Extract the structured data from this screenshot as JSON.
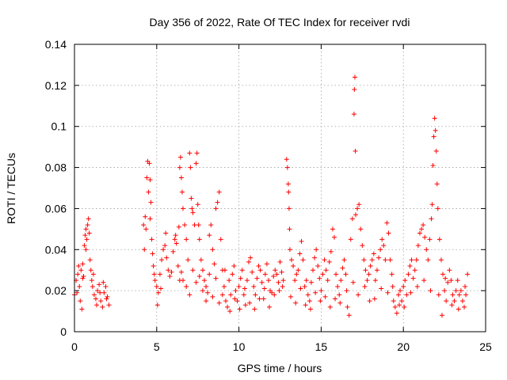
{
  "chart_data": {
    "type": "scatter",
    "title": "Day 356 of 2022, Rate Of TEC Index for receiver rvdi",
    "xlabel": "GPS time / hours",
    "ylabel": "ROTI / TECUs",
    "xlim": [
      0,
      25
    ],
    "ylim": [
      0,
      0.14
    ],
    "xticks": [
      "0",
      "5",
      "10",
      "15",
      "20",
      "25"
    ],
    "yticks": [
      "0",
      "0.02",
      "0.04",
      "0.06",
      "0.08",
      "0.1",
      "0.12",
      "0.14"
    ],
    "grid": true,
    "marker": "+",
    "color": "#ff0000",
    "points": [
      [
        0.0,
        0.018
      ],
      [
        0.1,
        0.025
      ],
      [
        0.2,
        0.028
      ],
      [
        0.25,
        0.032
      ],
      [
        0.3,
        0.022
      ],
      [
        0.35,
        0.015
      ],
      [
        0.4,
        0.03
      ],
      [
        0.45,
        0.011
      ],
      [
        0.5,
        0.026
      ],
      [
        0.55,
        0.027
      ],
      [
        0.6,
        0.042
      ],
      [
        0.65,
        0.047
      ],
      [
        0.7,
        0.05
      ],
      [
        0.75,
        0.045
      ],
      [
        0.8,
        0.052
      ],
      [
        0.85,
        0.055
      ],
      [
        0.9,
        0.048
      ],
      [
        0.95,
        0.035
      ],
      [
        1.0,
        0.03
      ],
      [
        1.05,
        0.025
      ],
      [
        1.1,
        0.022
      ],
      [
        1.2,
        0.018
      ],
      [
        1.3,
        0.016
      ],
      [
        1.4,
        0.02
      ],
      [
        1.5,
        0.023
      ],
      [
        1.6,
        0.015
      ],
      [
        1.7,
        0.012
      ],
      [
        1.8,
        0.019
      ],
      [
        1.9,
        0.022
      ],
      [
        2.0,
        0.017
      ],
      [
        2.1,
        0.013
      ],
      [
        0.15,
        0.019
      ],
      [
        0.5,
        0.033
      ],
      [
        0.7,
        0.04
      ],
      [
        1.15,
        0.028
      ],
      [
        1.35,
        0.013
      ],
      [
        1.55,
        0.019
      ],
      [
        1.75,
        0.024
      ],
      [
        1.95,
        0.016
      ],
      [
        4.2,
        0.052
      ],
      [
        4.3,
        0.056
      ],
      [
        4.35,
        0.05
      ],
      [
        4.4,
        0.075
      ],
      [
        4.45,
        0.083
      ],
      [
        4.5,
        0.068
      ],
      [
        4.55,
        0.082
      ],
      [
        4.6,
        0.074
      ],
      [
        4.65,
        0.063
      ],
      [
        4.7,
        0.045
      ],
      [
        4.75,
        0.038
      ],
      [
        4.8,
        0.032
      ],
      [
        4.85,
        0.028
      ],
      [
        4.9,
        0.025
      ],
      [
        5.0,
        0.022
      ],
      [
        5.1,
        0.019
      ],
      [
        5.2,
        0.028
      ],
      [
        5.3,
        0.035
      ],
      [
        5.4,
        0.04
      ],
      [
        5.5,
        0.042
      ],
      [
        5.6,
        0.036
      ],
      [
        5.7,
        0.03
      ],
      [
        5.8,
        0.027
      ],
      [
        5.9,
        0.029
      ],
      [
        6.0,
        0.039
      ],
      [
        6.1,
        0.045
      ],
      [
        6.2,
        0.043
      ],
      [
        6.3,
        0.032
      ],
      [
        6.4,
        0.025
      ],
      [
        6.5,
        0.029
      ],
      [
        4.25,
        0.04
      ],
      [
        4.6,
        0.055
      ],
      [
        5.05,
        0.013
      ],
      [
        5.25,
        0.021
      ],
      [
        5.55,
        0.048
      ],
      [
        6.15,
        0.047
      ],
      [
        6.35,
        0.051
      ],
      [
        6.4,
        0.08
      ],
      [
        6.45,
        0.085
      ],
      [
        6.5,
        0.075
      ],
      [
        6.55,
        0.068
      ],
      [
        6.6,
        0.06
      ],
      [
        6.7,
        0.052
      ],
      [
        6.8,
        0.045
      ],
      [
        6.9,
        0.035
      ],
      [
        7.0,
        0.087
      ],
      [
        7.05,
        0.08
      ],
      [
        7.1,
        0.065
      ],
      [
        7.15,
        0.06
      ],
      [
        7.2,
        0.058
      ],
      [
        7.3,
        0.052
      ],
      [
        7.4,
        0.082
      ],
      [
        7.45,
        0.087
      ],
      [
        7.5,
        0.062
      ],
      [
        7.55,
        0.052
      ],
      [
        7.6,
        0.045
      ],
      [
        7.7,
        0.035
      ],
      [
        7.8,
        0.03
      ],
      [
        7.9,
        0.025
      ],
      [
        8.0,
        0.022
      ],
      [
        8.1,
        0.019
      ],
      [
        8.2,
        0.047
      ],
      [
        8.3,
        0.052
      ],
      [
        8.4,
        0.04
      ],
      [
        8.5,
        0.033
      ],
      [
        8.6,
        0.06
      ],
      [
        8.7,
        0.063
      ],
      [
        8.8,
        0.068
      ],
      [
        8.9,
        0.045
      ],
      [
        9.0,
        0.03
      ],
      [
        6.6,
        0.025
      ],
      [
        6.8,
        0.022
      ],
      [
        7.0,
        0.018
      ],
      [
        7.2,
        0.03
      ],
      [
        7.4,
        0.024
      ],
      [
        7.6,
        0.027
      ],
      [
        7.8,
        0.02
      ],
      [
        8.0,
        0.015
      ],
      [
        8.2,
        0.028
      ],
      [
        8.4,
        0.017
      ],
      [
        8.6,
        0.026
      ],
      [
        8.8,
        0.014
      ],
      [
        9.0,
        0.018
      ],
      [
        9.1,
        0.022
      ],
      [
        9.2,
        0.015
      ],
      [
        9.3,
        0.012
      ],
      [
        9.4,
        0.025
      ],
      [
        9.5,
        0.018
      ],
      [
        9.6,
        0.028
      ],
      [
        9.7,
        0.032
      ],
      [
        9.8,
        0.02
      ],
      [
        9.9,
        0.015
      ],
      [
        10.0,
        0.022
      ],
      [
        10.1,
        0.026
      ],
      [
        10.2,
        0.03
      ],
      [
        10.3,
        0.018
      ],
      [
        10.4,
        0.013
      ],
      [
        10.5,
        0.025
      ],
      [
        10.6,
        0.034
      ],
      [
        10.7,
        0.036
      ],
      [
        10.8,
        0.029
      ],
      [
        10.9,
        0.022
      ],
      [
        11.0,
        0.018
      ],
      [
        11.1,
        0.026
      ],
      [
        11.2,
        0.032
      ],
      [
        11.3,
        0.03
      ],
      [
        11.4,
        0.024
      ],
      [
        11.5,
        0.016
      ],
      [
        11.6,
        0.028
      ],
      [
        11.7,
        0.033
      ],
      [
        11.8,
        0.025
      ],
      [
        11.9,
        0.02
      ],
      [
        12.0,
        0.019
      ],
      [
        12.1,
        0.027
      ],
      [
        12.2,
        0.03
      ],
      [
        12.3,
        0.028
      ],
      [
        12.4,
        0.024
      ],
      [
        12.5,
        0.034
      ],
      [
        12.6,
        0.029
      ],
      [
        12.7,
        0.025
      ],
      [
        9.15,
        0.03
      ],
      [
        9.45,
        0.01
      ],
      [
        9.75,
        0.016
      ],
      [
        10.05,
        0.011
      ],
      [
        10.35,
        0.021
      ],
      [
        10.65,
        0.014
      ],
      [
        10.95,
        0.011
      ],
      [
        11.25,
        0.016
      ],
      [
        11.55,
        0.021
      ],
      [
        11.85,
        0.012
      ],
      [
        12.15,
        0.018
      ],
      [
        12.45,
        0.02
      ],
      [
        12.65,
        0.022
      ],
      [
        12.9,
        0.084
      ],
      [
        12.95,
        0.08
      ],
      [
        13.0,
        0.072
      ],
      [
        13.02,
        0.068
      ],
      [
        13.05,
        0.06
      ],
      [
        13.08,
        0.05
      ],
      [
        13.1,
        0.04
      ],
      [
        13.2,
        0.035
      ],
      [
        13.3,
        0.032
      ],
      [
        13.4,
        0.025
      ],
      [
        13.5,
        0.028
      ],
      [
        13.6,
        0.03
      ],
      [
        13.7,
        0.038
      ],
      [
        13.8,
        0.044
      ],
      [
        13.9,
        0.035
      ],
      [
        14.0,
        0.022
      ],
      [
        14.1,
        0.025
      ],
      [
        14.2,
        0.018
      ],
      [
        14.3,
        0.015
      ],
      [
        14.4,
        0.024
      ],
      [
        14.5,
        0.03
      ],
      [
        14.6,
        0.036
      ],
      [
        14.7,
        0.04
      ],
      [
        14.8,
        0.032
      ],
      [
        14.9,
        0.026
      ],
      [
        15.0,
        0.02
      ],
      [
        15.1,
        0.028
      ],
      [
        15.2,
        0.035
      ],
      [
        15.3,
        0.03
      ],
      [
        15.4,
        0.025
      ],
      [
        15.5,
        0.034
      ],
      [
        15.6,
        0.039
      ],
      [
        15.7,
        0.05
      ],
      [
        15.8,
        0.046
      ],
      [
        15.9,
        0.028
      ],
      [
        16.0,
        0.022
      ],
      [
        16.1,
        0.018
      ],
      [
        16.2,
        0.025
      ],
      [
        16.3,
        0.031
      ],
      [
        13.15,
        0.017
      ],
      [
        13.45,
        0.014
      ],
      [
        13.75,
        0.021
      ],
      [
        14.05,
        0.013
      ],
      [
        14.35,
        0.011
      ],
      [
        14.65,
        0.019
      ],
      [
        14.95,
        0.015
      ],
      [
        15.25,
        0.017
      ],
      [
        15.55,
        0.012
      ],
      [
        15.85,
        0.016
      ],
      [
        16.15,
        0.014
      ],
      [
        16.4,
        0.035
      ],
      [
        16.5,
        0.028
      ],
      [
        16.6,
        0.012
      ],
      [
        16.7,
        0.008
      ],
      [
        16.8,
        0.045
      ],
      [
        16.9,
        0.055
      ],
      [
        17.0,
        0.106
      ],
      [
        17.02,
        0.118
      ],
      [
        17.05,
        0.124
      ],
      [
        17.08,
        0.088
      ],
      [
        17.1,
        0.057
      ],
      [
        17.2,
        0.06
      ],
      [
        17.3,
        0.062
      ],
      [
        17.4,
        0.05
      ],
      [
        17.5,
        0.042
      ],
      [
        17.6,
        0.035
      ],
      [
        17.7,
        0.03
      ],
      [
        17.8,
        0.025
      ],
      [
        17.9,
        0.028
      ],
      [
        18.0,
        0.032
      ],
      [
        18.1,
        0.035
      ],
      [
        18.2,
        0.038
      ],
      [
        18.3,
        0.025
      ],
      [
        18.4,
        0.03
      ],
      [
        18.5,
        0.036
      ],
      [
        18.6,
        0.04
      ],
      [
        18.7,
        0.045
      ],
      [
        18.8,
        0.042
      ],
      [
        18.9,
        0.035
      ],
      [
        19.0,
        0.053
      ],
      [
        19.1,
        0.048
      ],
      [
        19.2,
        0.035
      ],
      [
        19.3,
        0.028
      ],
      [
        19.4,
        0.015
      ],
      [
        19.5,
        0.012
      ],
      [
        19.6,
        0.009
      ],
      [
        19.7,
        0.018
      ],
      [
        19.8,
        0.02
      ],
      [
        16.55,
        0.02
      ],
      [
        16.95,
        0.024
      ],
      [
        17.25,
        0.018
      ],
      [
        17.65,
        0.022
      ],
      [
        17.95,
        0.015
      ],
      [
        18.25,
        0.016
      ],
      [
        18.65,
        0.021
      ],
      [
        19.05,
        0.019
      ],
      [
        19.35,
        0.022
      ],
      [
        19.75,
        0.013
      ],
      [
        19.9,
        0.015
      ],
      [
        20.0,
        0.022
      ],
      [
        20.1,
        0.025
      ],
      [
        20.2,
        0.018
      ],
      [
        20.3,
        0.028
      ],
      [
        20.4,
        0.032
      ],
      [
        20.5,
        0.035
      ],
      [
        20.6,
        0.026
      ],
      [
        20.7,
        0.03
      ],
      [
        20.8,
        0.035
      ],
      [
        20.9,
        0.042
      ],
      [
        21.0,
        0.048
      ],
      [
        21.1,
        0.05
      ],
      [
        21.2,
        0.052
      ],
      [
        21.3,
        0.046
      ],
      [
        21.4,
        0.04
      ],
      [
        21.5,
        0.035
      ],
      [
        21.6,
        0.045
      ],
      [
        21.7,
        0.055
      ],
      [
        21.75,
        0.062
      ],
      [
        21.8,
        0.081
      ],
      [
        21.85,
        0.095
      ],
      [
        21.9,
        0.104
      ],
      [
        21.95,
        0.098
      ],
      [
        22.0,
        0.088
      ],
      [
        22.05,
        0.072
      ],
      [
        22.1,
        0.06
      ],
      [
        22.2,
        0.045
      ],
      [
        22.3,
        0.035
      ],
      [
        22.4,
        0.028
      ],
      [
        22.5,
        0.02
      ],
      [
        22.6,
        0.015
      ],
      [
        22.7,
        0.024
      ],
      [
        22.8,
        0.03
      ],
      [
        22.9,
        0.025
      ],
      [
        23.0,
        0.018
      ],
      [
        23.1,
        0.015
      ],
      [
        23.2,
        0.02
      ],
      [
        23.3,
        0.025
      ],
      [
        23.4,
        0.018
      ],
      [
        23.5,
        0.02
      ],
      [
        23.6,
        0.015
      ],
      [
        23.7,
        0.012
      ],
      [
        23.8,
        0.018
      ],
      [
        23.9,
        0.028
      ],
      [
        20.05,
        0.012
      ],
      [
        20.45,
        0.019
      ],
      [
        20.85,
        0.022
      ],
      [
        21.25,
        0.025
      ],
      [
        21.65,
        0.02
      ],
      [
        22.15,
        0.018
      ],
      [
        22.35,
        0.008
      ],
      [
        22.55,
        0.026
      ],
      [
        22.95,
        0.013
      ],
      [
        23.35,
        0.011
      ],
      [
        23.75,
        0.022
      ]
    ]
  }
}
